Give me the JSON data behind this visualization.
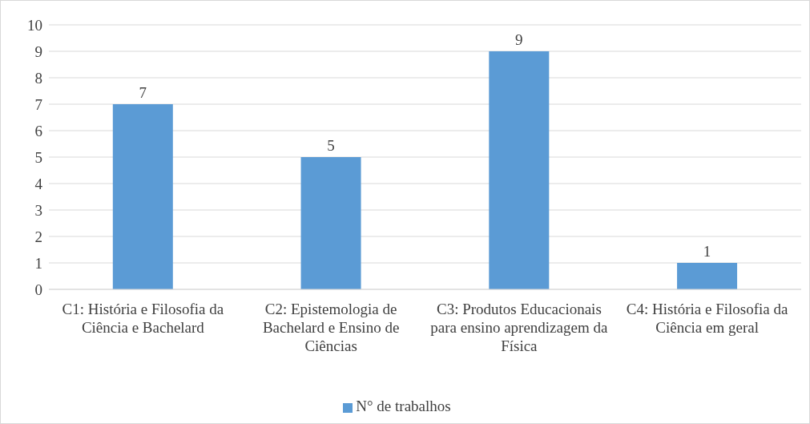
{
  "chart_data": {
    "type": "bar",
    "categories": [
      "C1: História e Filosofia da Ciência e Bachelard",
      "C2: Epistemologia de Bachelard e Ensino de Ciências",
      "C3: Produtos Educacionais para ensino aprendizagem da Física",
      "C4: História e Filosofia da Ciência em geral"
    ],
    "series": [
      {
        "name": "N° de trabalhos",
        "color": "#5b9bd5",
        "values": [
          7,
          5,
          9,
          1
        ]
      }
    ],
    "ylim": [
      0,
      10
    ],
    "yticks": [
      0,
      1,
      2,
      3,
      4,
      5,
      6,
      7,
      8,
      9,
      10
    ],
    "grid": "y",
    "legend": "bottom",
    "data_labels": true
  }
}
